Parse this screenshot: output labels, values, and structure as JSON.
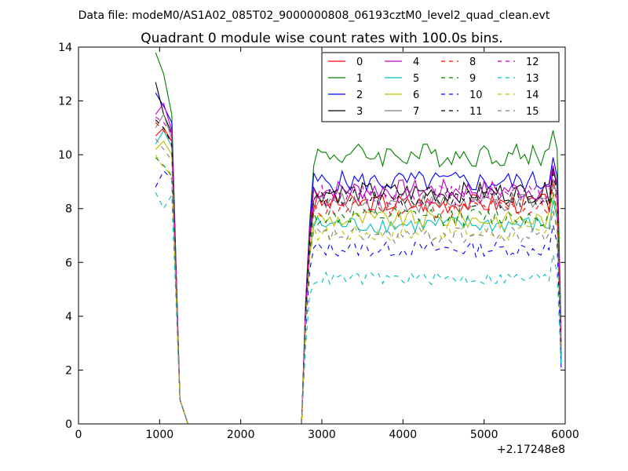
{
  "figure": {
    "suptitle": "Data file: modeM0/AS1A02_085T02_9000000808_06193cztM0_level2_quad_clean.evt"
  },
  "chart_data": {
    "type": "line",
    "title": "Quadrant 0 module wise count rates with 100.0s bins.",
    "xlabel": "",
    "ylabel": "",
    "x_offset_label": "+2.17248e8",
    "xlim": [
      0,
      6000
    ],
    "ylim": [
      0,
      14
    ],
    "xticks": [
      0,
      1000,
      2000,
      3000,
      4000,
      5000,
      6000
    ],
    "yticks": [
      0,
      2,
      4,
      6,
      8,
      10,
      12,
      14
    ],
    "xtick_labels": [
      "0",
      "1000",
      "2000",
      "3000",
      "4000",
      "5000",
      "6000"
    ],
    "ytick_labels": [
      "0",
      "2",
      "4",
      "6",
      "8",
      "10",
      "12",
      "14"
    ],
    "grid": false,
    "legend_position": "top-right",
    "legend_columns": 4,
    "bin_seconds": 100,
    "gap_start": 1350,
    "gap_end": 2750,
    "segment1_x": [
      950,
      1050,
      1150,
      1250,
      1350
    ],
    "segment2_x_start": 2750,
    "segment2_x_step": 50,
    "segment2_x_end": 5950,
    "series": [
      {
        "name": "0",
        "color": "#ff0000",
        "dash": "solid",
        "seg1": [
          10.7,
          11.0,
          10.5,
          0.9,
          0.0
        ],
        "rise": 6.9,
        "level": 8.2,
        "end": 3.0
      },
      {
        "name": "1",
        "color": "#008000",
        "dash": "solid",
        "seg1": [
          13.8,
          13.0,
          11.5,
          0.9,
          0.0
        ],
        "rise": 7.5,
        "level": 10.0,
        "end": 3.5
      },
      {
        "name": "2",
        "color": "#0000ff",
        "dash": "solid",
        "seg1": [
          12.3,
          11.8,
          11.2,
          0.9,
          0.0
        ],
        "rise": 7.3,
        "level": 9.0,
        "end": 2.1
      },
      {
        "name": "3",
        "color": "#000000",
        "dash": "solid",
        "seg1": [
          12.7,
          11.5,
          10.8,
          0.9,
          0.0
        ],
        "rise": 7.0,
        "level": 8.6,
        "end": 2.5
      },
      {
        "name": "4",
        "color": "#bf00bf",
        "dash": "solid",
        "seg1": [
          11.5,
          11.9,
          10.9,
          0.9,
          0.0
        ],
        "rise": 7.2,
        "level": 8.7,
        "end": 3.2
      },
      {
        "name": "5",
        "color": "#00bfbf",
        "dash": "solid",
        "seg1": [
          10.4,
          10.9,
          10.3,
          0.9,
          0.0
        ],
        "rise": 6.3,
        "level": 7.4,
        "end": 2.5
      },
      {
        "name": "6",
        "color": "#bfbf00",
        "dash": "solid",
        "seg1": [
          10.2,
          10.5,
          10.0,
          0.9,
          0.0
        ],
        "rise": 6.4,
        "level": 7.6,
        "end": 2.8
      },
      {
        "name": "7",
        "color": "#808080",
        "dash": "solid",
        "seg1": [
          11.0,
          11.5,
          10.6,
          0.9,
          0.0
        ],
        "rise": 6.8,
        "level": 8.2,
        "end": 3.0
      },
      {
        "name": "8",
        "color": "#ff0000",
        "dash": "dashed",
        "seg1": [
          11.2,
          10.9,
          10.5,
          0.9,
          0.0
        ],
        "rise": 6.8,
        "level": 8.0,
        "end": 2.9
      },
      {
        "name": "9",
        "color": "#008000",
        "dash": "dashed",
        "seg1": [
          9.9,
          9.6,
          9.2,
          0.9,
          0.0
        ],
        "rise": 6.4,
        "level": 7.7,
        "end": 2.6
      },
      {
        "name": "10",
        "color": "#0000ff",
        "dash": "dashed",
        "seg1": [
          8.8,
          9.4,
          9.1,
          0.9,
          0.0
        ],
        "rise": 5.7,
        "level": 6.5,
        "end": 2.3
      },
      {
        "name": "11",
        "color": "#000000",
        "dash": "dashed",
        "seg1": [
          11.3,
          11.0,
          10.4,
          0.9,
          0.0
        ],
        "rise": 6.9,
        "level": 8.4,
        "end": 2.8
      },
      {
        "name": "12",
        "color": "#bf00bf",
        "dash": "dashed",
        "seg1": [
          11.4,
          11.2,
          10.8,
          0.9,
          0.0
        ],
        "rise": 7.0,
        "level": 8.5,
        "end": 3.1
      },
      {
        "name": "13",
        "color": "#00bfbf",
        "dash": "dashed",
        "seg1": [
          8.6,
          8.0,
          8.5,
          0.9,
          0.0
        ],
        "rise": 4.8,
        "level": 5.4,
        "end": 2.2
      },
      {
        "name": "14",
        "color": "#bfbf00",
        "dash": "dashed",
        "seg1": [
          10.0,
          9.5,
          9.3,
          0.9,
          0.0
        ],
        "rise": 6.2,
        "level": 7.1,
        "end": 2.7
      },
      {
        "name": "15",
        "color": "#808080",
        "dash": "dashed",
        "seg1": [
          10.6,
          10.2,
          9.8,
          0.9,
          0.0
        ],
        "rise": 6.2,
        "level": 7.0,
        "end": 2.8
      }
    ]
  }
}
